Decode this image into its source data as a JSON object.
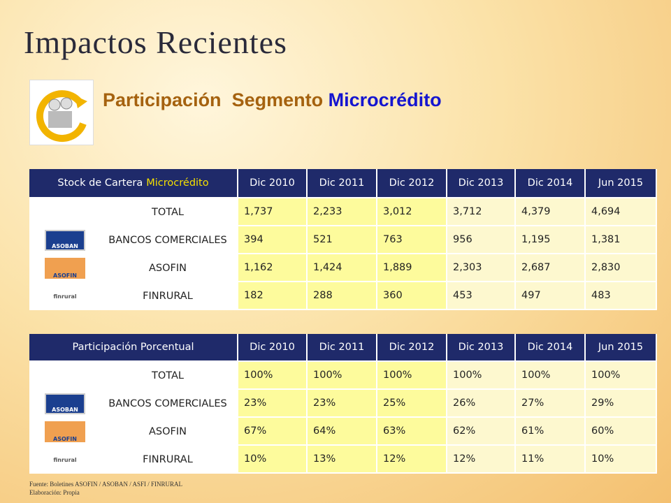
{
  "header": {
    "title": "Impactos Recientes",
    "subtitle": {
      "part1": "Participación",
      "part2": "Segmento",
      "part3": "Microcrédito"
    }
  },
  "tables": [
    {
      "title": {
        "main": "Stock de Cartera",
        "highlight": "Microcrédito"
      },
      "columns": [
        "Dic 2010",
        "Dic 2011",
        "Dic 2012",
        "Dic 2013",
        "Dic 2014",
        "Jun 2015"
      ],
      "rows": [
        {
          "label": "TOTAL",
          "cells": [
            "1,737",
            "2,233",
            "3,012",
            "3,712",
            "4,379",
            "4,694"
          ]
        },
        {
          "label": "BANCOS COMERCIALES",
          "logo": "ASOBAN",
          "cells": [
            "394",
            "521",
            "763",
            "956",
            "1,195",
            "1,381"
          ]
        },
        {
          "label": "ASOFIN",
          "logo": "ASOFIN",
          "cells": [
            "1,162",
            "1,424",
            "1,889",
            "2,303",
            "2,687",
            "2,830"
          ]
        },
        {
          "label": "FINRURAL",
          "logo": "finrural",
          "cells": [
            "182",
            "288",
            "360",
            "453",
            "497",
            "483"
          ]
        }
      ]
    },
    {
      "title": {
        "main": "Participación Porcentual"
      },
      "columns": [
        "Dic 2010",
        "Dic 2011",
        "Dic 2012",
        "Dic 2013",
        "Dic 2014",
        "Jun 2015"
      ],
      "rows": [
        {
          "label": "TOTAL",
          "cells": [
            "100%",
            "100%",
            "100%",
            "100%",
            "100%",
            "100%"
          ]
        },
        {
          "label": "BANCOS COMERCIALES",
          "logo": "ASOBAN",
          "cells": [
            "23%",
            "23%",
            "25%",
            "26%",
            "27%",
            "29%"
          ]
        },
        {
          "label": "ASOFIN",
          "logo": "ASOFIN",
          "cells": [
            "67%",
            "64%",
            "63%",
            "62%",
            "61%",
            "60%"
          ]
        },
        {
          "label": "FINRURAL",
          "logo": "finrural",
          "cells": [
            "10%",
            "13%",
            "12%",
            "12%",
            "11%",
            "10%"
          ]
        }
      ]
    }
  ],
  "footer": {
    "source": "Fuente: Boletines ASOFIN / ASOBAN / ASFI / FINRURAL",
    "made": "Elaboración: Propia"
  }
}
